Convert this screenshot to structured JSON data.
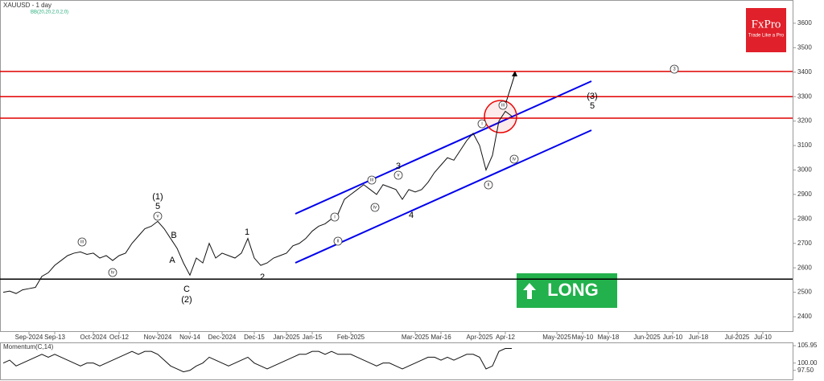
{
  "chart_data": [
    {
      "type": "line",
      "title": "XAUUSD - 1 day",
      "subtitle": "BB(20,20,2,0,2,0)",
      "color": "#111111",
      "categories": [
        null,
        null,
        null,
        null,
        "Sep-2024",
        null,
        null,
        null,
        "Sep-13",
        null,
        null,
        null,
        null,
        null,
        "Oct-2024",
        null,
        null,
        null,
        "Oct-12",
        null,
        null,
        null,
        null,
        null,
        "Nov-2024",
        null,
        null,
        null,
        null,
        "Nov-14",
        null,
        null,
        null,
        null,
        "Dec-2024",
        null,
        null,
        null,
        null,
        "Dec-15",
        null,
        null,
        null,
        null,
        "Jan-2025",
        null,
        null,
        null,
        "Jan-15",
        null,
        null,
        null,
        null,
        null,
        "Feb-2025",
        null,
        null,
        null,
        null,
        null,
        null,
        null,
        null,
        null,
        "Mar-2025",
        null,
        null,
        null,
        "Mar-16",
        null,
        null,
        null,
        null,
        null,
        "Apr-2025",
        null,
        null,
        null,
        "Apr-12",
        null,
        null,
        null,
        null,
        null,
        null,
        null,
        "May-2025",
        null,
        null,
        null,
        "May-10",
        null,
        null,
        null,
        "May-18",
        null,
        null,
        null,
        null,
        null,
        "Jun-2025",
        null,
        null,
        null,
        "Jun-10",
        null,
        null,
        null,
        "Jun-18",
        null,
        null,
        null,
        null,
        null,
        "Jul-2025",
        null,
        null,
        null,
        "Jul-10",
        null,
        null,
        null,
        null
      ],
      "values": [
        2500,
        2505,
        2495,
        2510,
        2515,
        2520,
        2565,
        2580,
        2610,
        2630,
        2650,
        2660,
        2665,
        2655,
        2660,
        2640,
        2650,
        2630,
        2650,
        2660,
        2700,
        2730,
        2760,
        2770,
        2790,
        2760,
        2720,
        2680,
        2620,
        2570,
        2640,
        2620,
        2700,
        2640,
        2660,
        2650,
        2640,
        2660,
        2720,
        2640,
        2610,
        2620,
        2640,
        2650,
        2660,
        2690,
        2700,
        2720,
        2750,
        2770,
        2780,
        2800,
        2820,
        2880,
        2900,
        2920,
        2940,
        2920,
        2900,
        2940,
        2930,
        2920,
        2880,
        2920,
        2910,
        2920,
        2950,
        2990,
        3020,
        3050,
        3040,
        3080,
        3120,
        3150,
        3100,
        3000,
        3060,
        3200,
        3240,
        3220,
        null,
        null,
        null,
        null,
        null,
        null,
        null,
        null,
        null,
        null,
        null,
        null,
        null,
        null,
        null,
        null,
        null,
        null,
        null,
        null,
        null,
        null,
        null,
        null,
        null,
        null,
        null,
        null,
        null,
        null,
        null,
        null,
        null,
        null,
        null,
        null,
        null,
        null,
        null,
        null,
        null,
        null,
        null
      ],
      "ylim": [
        2341,
        3695
      ],
      "yticks": [
        2400,
        2500,
        2600,
        2700,
        2800,
        2900,
        3000,
        3100,
        3200,
        3300,
        3400,
        3500,
        3600
      ],
      "hlines": [
        {
          "value": 3403,
          "color": "#e00000"
        },
        {
          "value": 3300,
          "color": "#e00000"
        },
        {
          "value": 3212,
          "color": "#e00000"
        },
        {
          "value": 2554,
          "color": "#000000"
        }
      ],
      "annotations": [
        "(1)",
        "5",
        "B",
        "A",
        "C",
        "(2)",
        "1",
        "2",
        "3",
        "4",
        "(3)",
        "5",
        "iii",
        "iv",
        "v",
        "i",
        "ii",
        "iii",
        "iv",
        "v",
        "i",
        "ii",
        "iii",
        "iv",
        "3"
      ]
    },
    {
      "type": "line",
      "title": "Momentum(C,14)",
      "color": "#111111",
      "values": [
        100,
        101,
        99,
        100,
        101,
        102,
        103,
        102,
        103,
        102,
        101,
        100,
        99,
        100,
        100,
        99,
        100,
        101,
        102,
        103,
        104,
        103,
        104,
        104,
        103,
        101,
        99,
        98,
        97,
        97.5,
        99,
        100,
        102,
        101,
        100,
        99,
        100,
        101,
        102,
        100,
        99,
        98,
        99,
        100,
        101,
        102,
        103,
        103,
        104,
        104,
        103,
        104,
        103,
        103,
        103,
        102,
        101,
        100,
        99,
        100,
        100,
        99,
        98,
        99,
        100,
        101,
        102,
        102,
        101,
        102,
        101,
        102,
        103,
        103,
        102,
        98,
        99,
        104,
        105,
        105,
        null,
        null,
        null,
        null,
        null,
        null,
        null,
        null,
        null,
        null,
        null,
        null,
        null,
        null,
        null,
        null,
        null,
        null,
        null,
        null,
        null,
        null,
        null,
        null,
        null,
        null,
        null,
        null,
        null,
        null,
        null,
        null,
        null,
        null,
        null,
        null,
        null,
        null,
        null,
        null,
        null,
        null,
        null
      ],
      "ylim": [
        94.4,
        106.8
      ],
      "yticks": [
        105.95,
        {
          "value": 100,
          "label": "100.00"
        },
        {
          "value": 97.5,
          "label": "97.50"
        }
      ]
    }
  ],
  "logo": {
    "brand": "FxPro",
    "tagline": "Trade Like a Pro"
  },
  "signal": "LONG"
}
